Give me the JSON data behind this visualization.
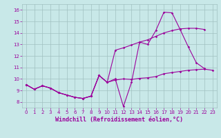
{
  "color": "#9b009b",
  "bg_color": "#c8e8e8",
  "grid_color": "#a0c0c0",
  "xlabel": "Windchill (Refroidissement éolien,°C)",
  "ylim": [
    7.5,
    16.5
  ],
  "xlim": [
    -0.5,
    23.5
  ],
  "yticks": [
    8,
    9,
    10,
    11,
    12,
    13,
    14,
    15,
    16
  ],
  "xticks": [
    0,
    1,
    2,
    3,
    4,
    5,
    6,
    7,
    8,
    9,
    10,
    11,
    12,
    13,
    14,
    15,
    16,
    17,
    18,
    19,
    20,
    21,
    22,
    23
  ],
  "tick_fontsize": 5.0,
  "xlabel_fontsize": 6.0,
  "curves": [
    {
      "x": [
        0,
        1,
        2,
        3,
        4,
        5,
        6,
        7,
        8,
        9,
        10,
        11,
        12,
        13,
        14,
        15,
        16,
        17,
        18,
        19,
        20,
        21,
        22,
        23
      ],
      "y": [
        9.5,
        9.1,
        9.4,
        9.2,
        8.8,
        8.6,
        8.4,
        8.3,
        8.5,
        10.3,
        9.7,
        9.9,
        10.0,
        9.95,
        10.05,
        10.1,
        10.2,
        10.45,
        10.55,
        10.65,
        10.75,
        10.8,
        10.85,
        10.75
      ]
    },
    {
      "x": [
        0,
        1,
        2,
        3,
        4,
        5,
        6,
        7,
        8,
        9,
        10,
        11,
        12,
        13,
        14,
        15,
        16,
        17,
        18,
        19,
        20,
        21,
        22,
        23
      ],
      "y": [
        9.5,
        9.1,
        9.4,
        9.2,
        8.8,
        8.6,
        8.4,
        8.3,
        8.5,
        10.3,
        9.7,
        12.5,
        12.7,
        12.95,
        13.2,
        13.4,
        13.7,
        14.0,
        14.2,
        14.35,
        14.4,
        14.4,
        14.3,
        null
      ]
    },
    {
      "x": [
        0,
        1,
        2,
        3,
        4,
        5,
        6,
        7,
        8,
        9,
        10,
        11,
        12,
        13,
        14,
        15,
        16,
        17,
        18,
        19,
        20,
        21,
        22
      ],
      "y": [
        9.5,
        9.1,
        9.4,
        9.2,
        8.8,
        8.6,
        8.4,
        8.3,
        8.5,
        10.3,
        9.7,
        10.0,
        7.6,
        9.7,
        13.2,
        13.0,
        14.2,
        15.8,
        15.75,
        14.3,
        12.8,
        11.4,
        10.9
      ]
    }
  ]
}
